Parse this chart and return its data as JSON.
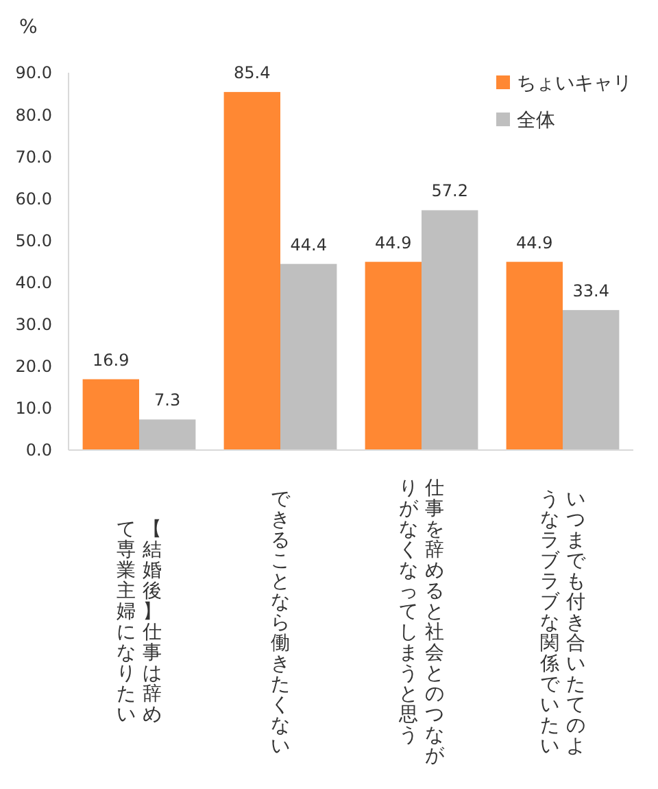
{
  "chart_data": {
    "type": "bar",
    "ylabel": "%",
    "categories": [
      "【結婚後】仕事は辞めて専業主婦になりたい",
      "できることなら働きたくない",
      "仕事を辞めると社会とのつながりがなくなってしまうと思う",
      "いつまでも付き合いたてのようなラブラブな関係でいたい"
    ],
    "series": [
      {
        "name": "ちょいキャリ",
        "color": "#ff8833",
        "values": [
          16.9,
          85.4,
          44.9,
          44.9
        ]
      },
      {
        "name": "全体",
        "color": "#bfbfbf",
        "values": [
          7.3,
          44.4,
          57.2,
          33.4
        ]
      }
    ],
    "ylim": [
      0,
      90
    ],
    "yticks": [
      {
        "value": 0,
        "label": "0.0"
      },
      {
        "value": 10,
        "label": "10.0"
      },
      {
        "value": 20,
        "label": "20.0"
      },
      {
        "value": 30,
        "label": "30.0"
      },
      {
        "value": 40,
        "label": "40.0"
      },
      {
        "value": 50,
        "label": "50.0"
      },
      {
        "value": 60,
        "label": "60.0"
      },
      {
        "value": 70,
        "label": "70.0"
      },
      {
        "value": 80,
        "label": "80.0"
      },
      {
        "value": 90,
        "label": "90.0"
      }
    ],
    "data_labels": true,
    "legend": "top right",
    "grid": false
  }
}
